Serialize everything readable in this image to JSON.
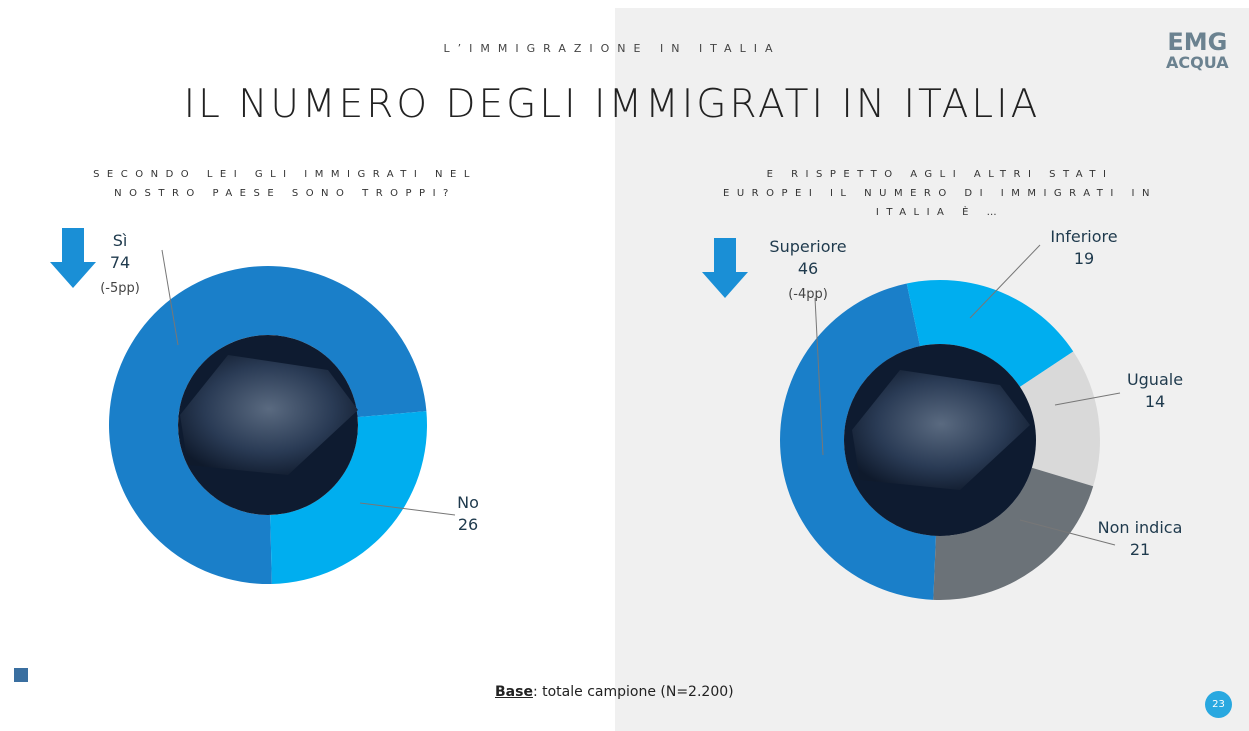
{
  "header": {
    "kicker": "L’IMMIGRAZIONE IN ITALIA",
    "title": "IL NUMERO DEGLI IMMIGRATI IN ITALIA",
    "logo_top": "EMG",
    "logo_bottom": "ACQUA"
  },
  "chart_data": [
    {
      "type": "donut",
      "title": "SECONDO LEI GLI IMMIGRATI NEL NOSTRO PAESE SONO TROPPI?",
      "categories": [
        "Sì",
        "No"
      ],
      "values": [
        74,
        26
      ],
      "colors": [
        "#1a7fc9",
        "#00aeef"
      ],
      "annotations": [
        "(-5pp)",
        null
      ]
    },
    {
      "type": "donut",
      "title": "E RISPETTO AGLI ALTRI STATI EUROPEI IL NUMERO DI IMMIGRATI IN ITALIA È …",
      "categories": [
        "Superiore",
        "Inferiore",
        "Uguale",
        "Non indica"
      ],
      "values": [
        46,
        19,
        14,
        21
      ],
      "colors": [
        "#1a7fc9",
        "#00aeef",
        "#d9d9d9",
        "#6b7278"
      ],
      "annotations": [
        "(-4pp)",
        null,
        null,
        null
      ]
    }
  ],
  "footer": {
    "base_label": "Base",
    "base_text": ": totale campione (N=2.200)",
    "page_number": "23"
  }
}
